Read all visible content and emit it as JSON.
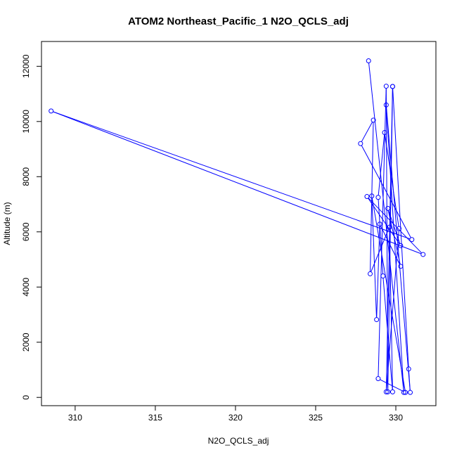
{
  "chart_data": {
    "type": "line",
    "title": "ATOM2 Northeast_Pacific_1 N2O_QCLS_adj",
    "xlabel": "N2O_QCLS_adj",
    "ylabel": "Altitude (m)",
    "xlim": [
      307.9,
      332.5
    ],
    "ylim": [
      -300,
      12900
    ],
    "xticks": [
      310,
      315,
      320,
      325,
      330
    ],
    "yticks": [
      0,
      2000,
      4000,
      6000,
      8000,
      10000,
      12000
    ],
    "grid": false,
    "line_color": "#0000ff",
    "marker": "open-circle",
    "series": [
      {
        "name": "",
        "x": [
          328.3,
          330.5,
          329.4,
          330.9,
          330.8,
          329.8,
          329.4,
          330.2,
          329.3,
          328.9,
          329.2,
          329.8,
          329.6,
          328.4,
          328.6,
          327.8,
          331.0,
          308.5,
          331.7,
          328.2,
          330.3,
          329.5,
          330.3,
          329.0,
          328.8,
          328.5,
          330.6,
          328.9,
          329.4,
          329.5,
          329.8
        ],
        "y": [
          12200,
          180,
          10600,
          180,
          1030,
          11270,
          200,
          6120,
          9600,
          7250,
          4400,
          200,
          6170,
          4480,
          10050,
          9200,
          5720,
          10380,
          5180,
          7280,
          5500,
          6850,
          4750,
          6280,
          2820,
          7300,
          180,
          680,
          11280,
          200,
          11270
        ]
      }
    ]
  }
}
